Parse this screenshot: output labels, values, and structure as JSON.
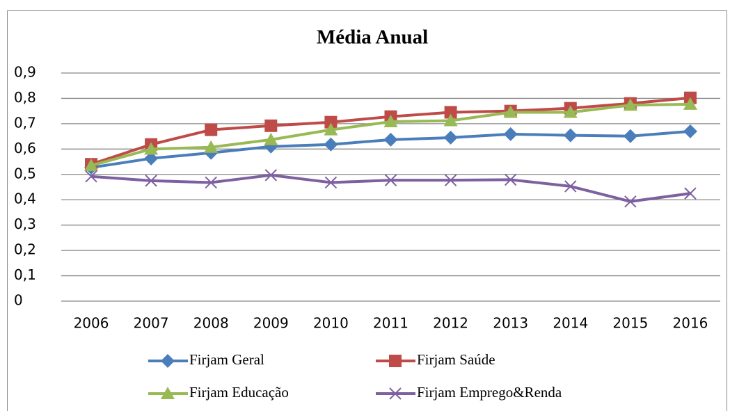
{
  "chart_data": {
    "type": "line",
    "title": "Média Anual",
    "categories": [
      "2006",
      "2007",
      "2008",
      "2009",
      "2010",
      "2011",
      "2012",
      "2013",
      "2014",
      "2015",
      "2016"
    ],
    "series": [
      {
        "name": "Firjam Geral",
        "color": "#4a7ebb",
        "marker": "diamond",
        "values": [
          0.527,
          0.563,
          0.585,
          0.61,
          0.618,
          0.637,
          0.645,
          0.659,
          0.654,
          0.651,
          0.67
        ]
      },
      {
        "name": "Firjam Saúde",
        "color": "#be4b48",
        "marker": "square",
        "values": [
          0.54,
          0.618,
          0.676,
          0.692,
          0.706,
          0.728,
          0.745,
          0.75,
          0.761,
          0.78,
          0.802
        ]
      },
      {
        "name": "Firjam Educação",
        "color": "#98b954",
        "marker": "triangle",
        "values": [
          0.535,
          0.6,
          0.607,
          0.637,
          0.676,
          0.708,
          0.712,
          0.745,
          0.745,
          0.773,
          0.777
        ]
      },
      {
        "name": "Firjam Emprego&Renda",
        "color": "#7d60a0",
        "marker": "x",
        "values": [
          0.492,
          0.475,
          0.468,
          0.497,
          0.468,
          0.477,
          0.477,
          0.479,
          0.453,
          0.393,
          0.425
        ]
      }
    ],
    "ylim": [
      0,
      0.9
    ],
    "yticks": [
      0,
      {
        "value": 0.1,
        "label": "0,1"
      },
      {
        "value": 0.2,
        "label": "0,2"
      },
      {
        "value": 0.3,
        "label": "0,3"
      },
      {
        "value": 0.4,
        "label": "0,4"
      },
      {
        "value": 0.5,
        "label": "0,5"
      },
      {
        "value": 0.6,
        "label": "0,6"
      },
      {
        "value": 0.7,
        "label": "0,7"
      },
      {
        "value": 0.8,
        "label": "0,8"
      },
      {
        "value": 0.9,
        "label": "0,9"
      }
    ],
    "grid": true,
    "legend": "bottom"
  }
}
